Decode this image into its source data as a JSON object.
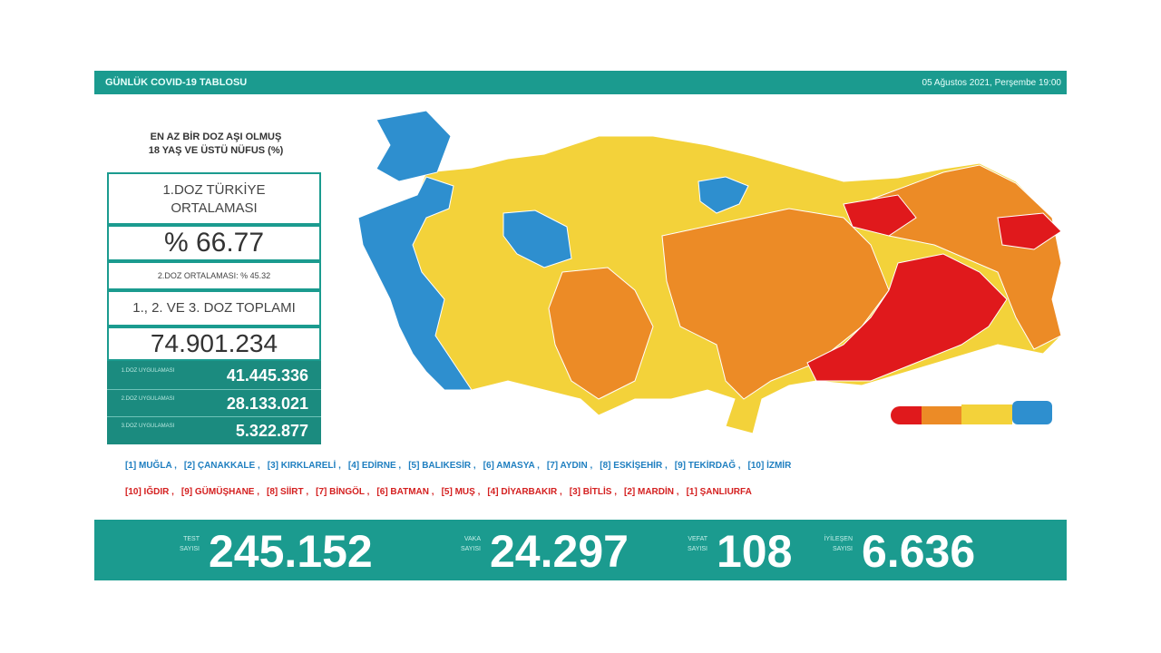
{
  "header": {
    "title": "GÜNLÜK COVID-19 TABLOSU",
    "date": "05 Ağustos 2021, Perşembe 19:00"
  },
  "panel": {
    "heading": [
      "EN AZ BİR DOZ AŞI OLMUŞ",
      "18 YAŞ VE ÜSTÜ NÜFUS (%)"
    ],
    "first_dose_label": [
      "1.DOZ TÜRKİYE",
      "ORTALAMASI"
    ],
    "first_dose_value": "% 66.77",
    "second_dose_average": "2.DOZ ORTALAMASI: % 45.32",
    "total_label": "1., 2. VE 3. DOZ TOPLAMI",
    "total_value": "74.901.234",
    "doses": [
      {
        "label": "1.DOZ UYGULAMASI",
        "value": "41.445.336"
      },
      {
        "label": "2.DOZ UYGULAMASI",
        "value": "28.133.021"
      },
      {
        "label": "3.DOZ UYGULAMASI",
        "value": "5.322.877"
      }
    ]
  },
  "top_provinces": [
    "[1] MUĞLA ,",
    "[2] ÇANAKKALE ,",
    "[3] KIRKLARELİ ,",
    "[4] EDİRNE ,",
    "[5] BALIKESİR ,",
    "[6] AMASYA ,",
    "[7] AYDIN ,",
    "[8] ESKİŞEHİR ,",
    "[9] TEKİRDAĞ ,",
    "[10] İZMİR"
  ],
  "bottom_provinces": [
    "[10] IĞDIR ,",
    "[9] GÜMÜŞHANE ,",
    "[8] SİİRT ,",
    "[7] BİNGÖL ,",
    "[6] BATMAN ,",
    "[5] MUŞ ,",
    "[4] DİYARBAKIR ,",
    "[3] BİTLİS ,",
    "[2] MARDİN ,",
    "[1] ŞANLIURFA"
  ],
  "stats": [
    {
      "label": "TEST SAYISI",
      "value": "245.152"
    },
    {
      "label": "VAKA SAYISI",
      "value": "24.297"
    },
    {
      "label": "VEFAT SAYISI",
      "value": "108"
    },
    {
      "label": "İYİLEŞEN SAYISI",
      "value": "6.636"
    }
  ]
}
